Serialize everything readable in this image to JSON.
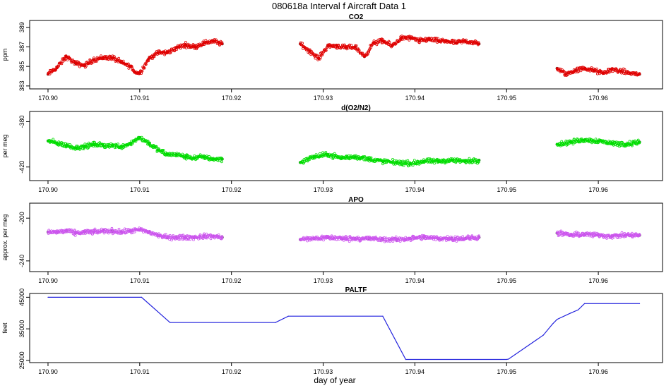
{
  "figure": {
    "title": "080618a   Interval f Aircraft Data 1",
    "xlabel": "day of year"
  },
  "colors": {
    "co2": "#e00000",
    "o2n2": "#00dd00",
    "apo": "#cc55ee",
    "paltf": "#2222dd"
  },
  "chart_data": [
    {
      "type": "scatter",
      "title": "CO2",
      "ylabel": "ppm",
      "xlim": [
        170.898,
        170.967
      ],
      "ylim": [
        382.7,
        389.7
      ],
      "yticks": [
        383,
        385,
        387,
        389
      ],
      "xticks": [
        170.9,
        170.91,
        170.92,
        170.93,
        170.94,
        170.95,
        170.96
      ],
      "xtick_labels": [
        "170.90",
        "170.91",
        "170.92",
        "170.93",
        "170.94",
        "170.95",
        "170.96"
      ],
      "series": [
        {
          "name": "CO2",
          "color_key": "co2",
          "x": [
            170.9,
            170.901,
            170.902,
            170.903,
            170.904,
            170.905,
            170.906,
            170.907,
            170.908,
            170.909,
            170.9095,
            170.91,
            170.911,
            170.912,
            170.913,
            170.914,
            170.915,
            170.916,
            170.917,
            170.918,
            170.919,
            170.9275,
            170.9285,
            170.9295,
            170.9305,
            170.9315,
            170.9325,
            170.9335,
            170.9345,
            170.9355,
            170.9365,
            170.9375,
            170.9385,
            170.9395,
            170.9405,
            170.9415,
            170.9425,
            170.9435,
            170.9445,
            170.9455,
            170.947,
            170.9555,
            170.9565,
            170.9575,
            170.9585,
            170.9595,
            170.9605,
            170.9615,
            170.9625,
            170.9635,
            170.9645
          ],
          "y": [
            384.2,
            384.9,
            386.0,
            385.3,
            385.1,
            385.7,
            385.9,
            385.9,
            385.4,
            385.0,
            384.4,
            384.3,
            385.8,
            386.4,
            386.4,
            386.9,
            387.2,
            387.0,
            387.4,
            387.6,
            387.3,
            387.3,
            386.6,
            385.8,
            387.1,
            387.1,
            386.9,
            387.0,
            386.0,
            387.4,
            387.6,
            387.1,
            387.9,
            387.9,
            387.6,
            387.8,
            387.6,
            387.6,
            387.4,
            387.6,
            387.3,
            384.8,
            384.2,
            384.6,
            384.8,
            384.6,
            384.3,
            384.7,
            384.5,
            384.3,
            384.2
          ]
        }
      ]
    },
    {
      "type": "scatter",
      "title": "d(O2/N2)",
      "ylabel": "per meg",
      "xlim": [
        170.898,
        170.967
      ],
      "ylim": [
        -432,
        -371
      ],
      "yticks": [
        -420,
        -380
      ],
      "xticks": [
        170.9,
        170.91,
        170.92,
        170.93,
        170.94,
        170.95,
        170.96
      ],
      "xtick_labels": [
        "170.90",
        "170.91",
        "170.92",
        "170.93",
        "170.94",
        "170.95",
        "170.96"
      ],
      "series": [
        {
          "name": "d(O2/N2)",
          "color_key": "o2n2",
          "x": [
            170.9,
            170.901,
            170.902,
            170.903,
            170.904,
            170.905,
            170.906,
            170.907,
            170.908,
            170.909,
            170.91,
            170.911,
            170.912,
            170.913,
            170.914,
            170.915,
            170.916,
            170.917,
            170.918,
            170.919,
            170.9275,
            170.929,
            170.9305,
            170.932,
            170.9335,
            170.935,
            170.9365,
            170.938,
            170.9395,
            170.941,
            170.9425,
            170.944,
            170.9455,
            170.947,
            170.9555,
            170.957,
            170.9585,
            170.96,
            170.9615,
            170.963,
            170.9645
          ],
          "y": [
            -397,
            -399,
            -401,
            -403,
            -402,
            -400,
            -401,
            -401,
            -402,
            -399,
            -394,
            -399,
            -405,
            -409,
            -409,
            -411,
            -412,
            -411,
            -413,
            -413,
            -416,
            -411,
            -409,
            -412,
            -411,
            -413,
            -415,
            -416,
            -417,
            -415,
            -415,
            -414,
            -415,
            -414,
            -400,
            -398,
            -396,
            -397,
            -399,
            -400,
            -398
          ]
        }
      ]
    },
    {
      "type": "scatter",
      "title": "APO",
      "ylabel": "approx. per meg",
      "xlim": [
        170.898,
        170.967
      ],
      "ylim": [
        -250,
        -186
      ],
      "yticks": [
        -240,
        -200
      ],
      "xticks": [
        170.9,
        170.91,
        170.92,
        170.93,
        170.94,
        170.95,
        170.96
      ],
      "xtick_labels": [
        "170.90",
        "170.91",
        "170.92",
        "170.93",
        "170.94",
        "170.95",
        "170.96"
      ],
      "series": [
        {
          "name": "APO",
          "color_key": "apo",
          "x": [
            170.9,
            170.901,
            170.902,
            170.903,
            170.904,
            170.905,
            170.906,
            170.907,
            170.908,
            170.909,
            170.91,
            170.911,
            170.912,
            170.913,
            170.914,
            170.915,
            170.916,
            170.917,
            170.918,
            170.919,
            170.9275,
            170.929,
            170.9305,
            170.932,
            170.9335,
            170.935,
            170.9365,
            170.938,
            170.9395,
            170.941,
            170.9425,
            170.944,
            170.9455,
            170.947,
            170.9555,
            170.957,
            170.9585,
            170.96,
            170.9615,
            170.963,
            170.9645
          ],
          "y": [
            -213,
            -213,
            -212,
            -214,
            -213,
            -213,
            -212,
            -212,
            -213,
            -212,
            -211,
            -213,
            -216,
            -218,
            -218,
            -218,
            -218,
            -217,
            -217,
            -218,
            -220,
            -219,
            -218,
            -219,
            -219,
            -219,
            -220,
            -220,
            -219,
            -218,
            -219,
            -219,
            -219,
            -218,
            -214,
            -216,
            -215,
            -216,
            -217,
            -216,
            -216
          ]
        }
      ]
    },
    {
      "type": "line",
      "title": "PALTF",
      "ylabel": "feet",
      "xlim": [
        170.898,
        170.967
      ],
      "ylim": [
        24300,
        46200
      ],
      "yticks": [
        25000,
        35000,
        45000
      ],
      "xticks": [
        170.9,
        170.91,
        170.92,
        170.93,
        170.94,
        170.95,
        170.96
      ],
      "xtick_labels": [
        "170.90",
        "170.91",
        "170.92",
        "170.93",
        "170.94",
        "170.95",
        "170.96"
      ],
      "series": [
        {
          "name": "PALTF",
          "color_key": "paltf",
          "x": [
            170.9,
            170.9102,
            170.9133,
            170.9248,
            170.9262,
            170.9365,
            170.939,
            170.95,
            170.9502,
            170.952,
            170.954,
            170.955,
            170.9555,
            170.957,
            170.9578,
            170.9585,
            170.9645
          ],
          "y": [
            45000,
            45000,
            37000,
            37000,
            39000,
            39000,
            25300,
            25300,
            25400,
            29000,
            33000,
            36500,
            38000,
            40000,
            41000,
            43000,
            43000
          ]
        }
      ]
    }
  ]
}
